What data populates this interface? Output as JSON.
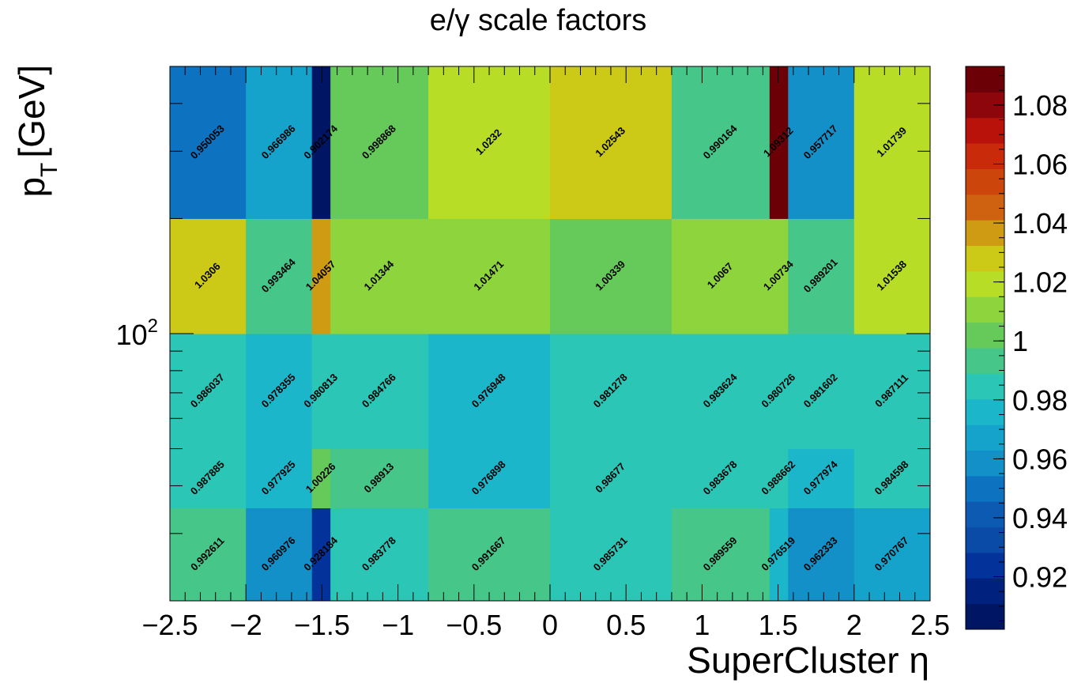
{
  "chart_data": {
    "type": "heatmap",
    "title": "e/γ scale factors",
    "xlabel": "SuperCluster η",
    "ylabel_main": "p",
    "ylabel_sub": "T",
    "ylabel_unit": "[GeV]",
    "x_edges": [
      -2.5,
      -2.0,
      -1.566,
      -1.444,
      -0.8,
      0.0,
      0.8,
      1.444,
      1.566,
      2.0,
      2.5
    ],
    "y_edges": [
      20,
      35,
      50,
      100,
      200,
      500
    ],
    "y_scale": "log",
    "xlim": [
      -2.5,
      2.5
    ],
    "ylim": [
      20,
      500
    ],
    "x_ticks": [
      -2.5,
      -2,
      -1.5,
      -1,
      -0.5,
      0,
      0.5,
      1,
      1.5,
      2,
      2.5
    ],
    "x_tick_labels": [
      "−2.5",
      "−2",
      "−1.5",
      "−1",
      "−0.5",
      "0",
      "0.5",
      "1",
      "1.5",
      "2",
      "2.5"
    ],
    "y_major_tick_base": "10",
    "y_major_tick_exp": "2",
    "values": [
      [
        0.992611,
        0.960976,
        0.928184,
        0.983778,
        0.991667,
        0.985731,
        0.989559,
        0.976519,
        0.962333,
        0.970767
      ],
      [
        0.987885,
        0.977925,
        1.00226,
        0.98913,
        0.976898,
        0.98677,
        0.983678,
        0.988662,
        0.977974,
        0.984598
      ],
      [
        0.986037,
        0.978355,
        0.980813,
        0.984766,
        0.976948,
        0.981278,
        0.983624,
        0.980726,
        0.981602,
        0.987111
      ],
      [
        1.0306,
        0.993464,
        1.04057,
        1.01344,
        1.01471,
        1.00339,
        1.0067,
        1.00734,
        0.989201,
        1.01538
      ],
      [
        0.950053,
        0.966986,
        0.902174,
        0.998868,
        1.0232,
        1.02543,
        0.990164,
        1.09312,
        0.957717,
        1.01739
      ]
    ],
    "labels": [
      [
        "0.992611",
        "0.960976",
        "0.928184",
        "0.983778",
        "0.991667",
        "0.985731",
        "0.989559",
        "0.976519",
        "0.962333",
        "0.970767"
      ],
      [
        "0.987885",
        "0.977925",
        "1.00226",
        "0.98913",
        "0.976898",
        "0.98677",
        "0.983678",
        "0.988662",
        "0.977974",
        "0.984598"
      ],
      [
        "0.986037",
        "0.978355",
        "0.980813",
        "0.984766",
        "0.976948",
        "0.981278",
        "0.983624",
        "0.980726",
        "0.981602",
        "0.987111"
      ],
      [
        "1.0306",
        "0.993464",
        "1.04057",
        "1.01344",
        "1.01471",
        "1.00339",
        "1.0067",
        "1.00734",
        "0.989201",
        "1.01538"
      ],
      [
        "0.950053",
        "0.966986",
        "0.902174",
        "0.998868",
        "1.0232",
        "1.02543",
        "0.990164",
        "1.09312",
        "0.957717",
        "1.01739"
      ]
    ],
    "z_range": [
      0.902174,
      1.09312
    ],
    "colorbar_ticks": [
      0.92,
      0.94,
      0.96,
      0.98,
      1.0,
      1.02,
      1.04,
      1.06,
      1.08
    ],
    "colorbar_tick_labels": [
      "0.92",
      "0.94",
      "0.96",
      "0.98",
      "1",
      "1.02",
      "1.04",
      "1.06",
      "1.08"
    ],
    "palette": [
      "#001664",
      "#01217f",
      "#03329a",
      "#0a4ba7",
      "#0d5ab2",
      "#0d72c0",
      "#1290c7",
      "#15a3cc",
      "#1cb6cb",
      "#2bc6b6",
      "#47c68a",
      "#66ca5a",
      "#8ed43c",
      "#b7dd26",
      "#cdca17",
      "#cf9b12",
      "#ce6210",
      "#cc460c",
      "#c82a0a",
      "#b9120a",
      "#8d060c",
      "#6b0006"
    ],
    "grid": false,
    "legend": "none"
  }
}
